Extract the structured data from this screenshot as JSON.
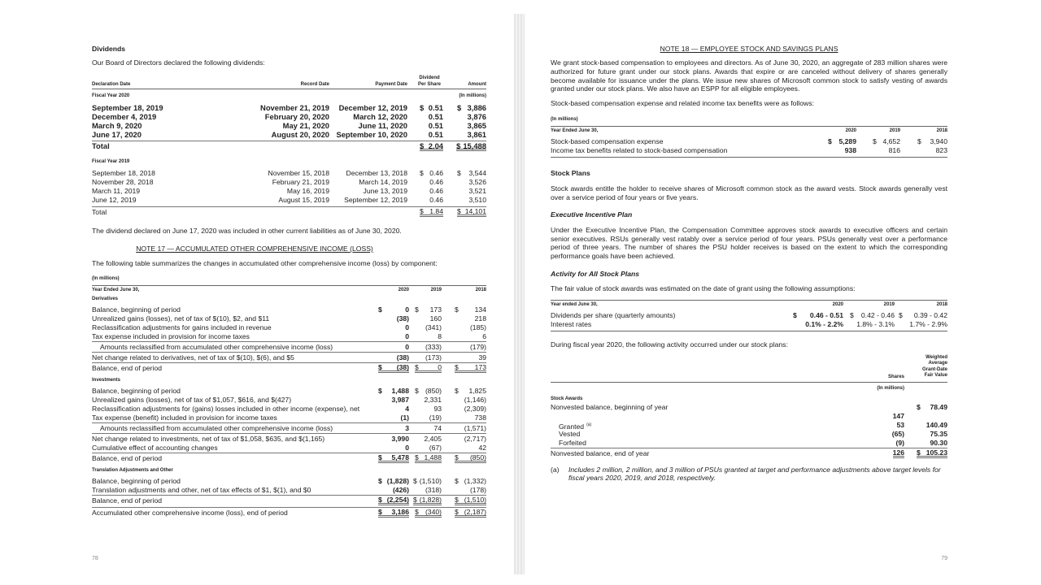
{
  "left_page": {
    "page_number": "78",
    "dividends": {
      "title": "Dividends",
      "intro": "Our Board of Directors declared the following dividends:",
      "headers": {
        "declaration_date": "Declaration Date",
        "record_date": "Record Date",
        "payment_date": "Payment Date",
        "dividend_per_share": "Dividend Per Share",
        "amount": "Amount"
      },
      "groups": [
        {
          "label": "Fiscal Year 2020",
          "unit": "(In millions)",
          "rows": [
            [
              "September 18, 2019",
              "November 21, 2019",
              "December 12, 2019",
              "$ 0.51",
              "$ 3,886"
            ],
            [
              "December 4, 2019",
              "February 20, 2020",
              "March 12, 2020",
              "0.51",
              "3,876"
            ],
            [
              "March 9, 2020",
              "May 21, 2020",
              "June 11, 2020",
              "0.51",
              "3,865"
            ],
            [
              "June 17, 2020",
              "August 20, 2020",
              "September 10, 2020",
              "0.51",
              "3,861"
            ]
          ],
          "total": [
            "Total",
            "",
            "",
            "$ 2.04",
            "$ 15,488"
          ]
        },
        {
          "label": "Fiscal Year 2019",
          "unit": "",
          "rows": [
            [
              "September 18, 2018",
              "November 15, 2018",
              "December 13, 2018",
              "$ 0.46",
              "$ 3,544"
            ],
            [
              "November 28, 2018",
              "February 21, 2019",
              "March 14, 2019",
              "0.46",
              "3,526"
            ],
            [
              "March 11, 2019",
              "May 16, 2019",
              "June 13, 2019",
              "0.46",
              "3,521"
            ],
            [
              "June 12, 2019",
              "August 15, 2019",
              "September 12, 2019",
              "0.46",
              "3,510"
            ]
          ],
          "total": [
            "Total",
            "",
            "",
            "$ 1.84",
            "$ 14,101"
          ]
        }
      ],
      "note_text": "The dividend declared on June 17, 2020 was included in other current liabilities as of June 30, 2020."
    },
    "aoci": {
      "title": "NOTE 17 — ACCUMULATED OTHER COMPREHENSIVE INCOME (LOSS)",
      "intro": "The following table summarizes the changes in accumulated other comprehensive income (loss) by component:",
      "unit": "(In millions)",
      "year_label": "Year Ended June 30,",
      "years": [
        "2020",
        "2019",
        "2018"
      ],
      "sections": [
        {
          "label": "Derivatives",
          "rows": [
            {
              "label": "Balance, beginning of period",
              "v": [
                "$ 0",
                "$ 173",
                "$ 134"
              ]
            },
            {
              "label": "Unrealized gains (losses), net of tax of $(10), $2, and $11",
              "v": [
                "(38)",
                "160",
                "218"
              ]
            },
            {
              "label": "Reclassification adjustments for gains included in revenue",
              "v": [
                "0",
                "(341)",
                "(185)"
              ]
            },
            {
              "label": "Tax expense included in provision for income taxes",
              "v": [
                "0",
                "8",
                "6"
              ]
            },
            {
              "label": "Amounts reclassified from accumulated other comprehensive income (loss)",
              "v": [
                "0",
                "(333)",
                "(179)"
              ]
            },
            {
              "label": "Net change related to derivatives, net of tax of $(10), $(6), and $5",
              "v": [
                "(38)",
                "(173)",
                "39"
              ]
            },
            {
              "label": "Balance, end of period",
              "v": [
                "$ (38)",
                "$ 0",
                "$ 173"
              ]
            }
          ]
        },
        {
          "label": "Investments",
          "rows": [
            {
              "label": "Balance, beginning of period",
              "v": [
                "$ 1,488",
                "$ (850)",
                "$ 1,825"
              ]
            },
            {
              "label": "Unrealized gains (losses), net of tax of $1,057, $616, and $(427)",
              "v": [
                "3,987",
                "2,331",
                "(1,146)"
              ]
            },
            {
              "label": "Reclassification adjustments for (gains) losses included in other income (expense), net",
              "v": [
                "4",
                "93",
                "(2,309)"
              ]
            },
            {
              "label": "Tax expense (benefit) included in provision for income taxes",
              "v": [
                "(1)",
                "(19)",
                "738"
              ]
            },
            {
              "label": "Amounts reclassified from accumulated other comprehensive income (loss)",
              "v": [
                "3",
                "74",
                "(1,571)"
              ]
            },
            {
              "label": "Net change related to investments, net of tax of $1,058, $635, and $(1,165)",
              "v": [
                "3,990",
                "2,405",
                "(2,717)"
              ]
            },
            {
              "label": "Cumulative effect of accounting changes",
              "v": [
                "0",
                "(67)",
                "42"
              ]
            },
            {
              "label": "Balance, end of period",
              "v": [
                "$ 5,478",
                "$ 1,488",
                "$ (850)"
              ]
            }
          ]
        },
        {
          "label": "Translation Adjustments and Other",
          "rows": [
            {
              "label": "Balance, beginning of period",
              "v": [
                "$ (1,828)",
                "$ (1,510)",
                "$ (1,332)"
              ]
            },
            {
              "label": "Translation adjustments and other, net of tax effects of $1, $(1), and $0",
              "v": [
                "(426)",
                "(318)",
                "(178)"
              ]
            },
            {
              "label": "Balance, end of period",
              "v": [
                "$ (2,254)",
                "$ (1,828)",
                "$ (1,510)"
              ]
            }
          ]
        }
      ],
      "final": {
        "label": "Accumulated other comprehensive income (loss), end of period",
        "v": [
          "$ 3,186",
          "$ (340)",
          "$ (2,187)"
        ]
      }
    }
  },
  "right_page": {
    "page_number": "79",
    "note_title": "NOTE 18 — EMPLOYEE STOCK AND SAVINGS PLANS",
    "intro": "We grant stock-based compensation to employees and directors. As of June 30, 2020, an aggregate of 283 million shares were authorized for future grant under our stock plans. Awards that expire or are canceled without delivery of shares generally become available for issuance under the plans. We issue new shares of Microsoft common stock to satisfy vesting of awards granted under our stock plans. We also have an ESPP for all eligible employees.",
    "sbc": {
      "intro": "Stock-based compensation expense and related income tax benefits were as follows:",
      "unit": "(In millions)",
      "year_label": "Year Ended June 30,",
      "years": [
        "2020",
        "2019",
        "2018"
      ],
      "rows": [
        {
          "label": "Stock-based compensation expense",
          "v": [
            "$ 5,289",
            "$ 4,652",
            "$ 3,940"
          ]
        },
        {
          "label": "Income tax benefits related to stock-based compensation",
          "v": [
            "938",
            "816",
            "823"
          ]
        }
      ]
    },
    "stock_plans": {
      "title": "Stock Plans",
      "text": "Stock awards entitle the holder to receive shares of Microsoft common stock as the award vests. Stock awards generally vest over a service period of four years or five years."
    },
    "executive_plan": {
      "title": "Executive Incentive Plan",
      "text": "Under the Executive Incentive Plan, the Compensation Committee approves stock awards to executive officers and certain senior executives. RSUs generally vest ratably over a service period of four years. PSUs generally vest over a performance period of three years. The number of shares the PSU holder receives is based on the extent to which the corresponding performance goals have been achieved."
    },
    "activity": {
      "title": "Activity for All Stock Plans",
      "intro": "The fair value of stock awards was estimated on the date of grant using the following assumptions:",
      "year_label": "Year ended June 30,",
      "years": [
        "2020",
        "2019",
        "2018"
      ],
      "rows": [
        {
          "label": "Dividends per share (quarterly amounts)",
          "v": [
            "$ 0.46 - 0.51",
            "$ 0.42 - 0.46",
            "$ 0.39 - 0.42"
          ]
        },
        {
          "label": "Interest rates",
          "v": [
            "0.1% - 2.2%",
            "1.8% - 3.1%",
            "1.7% - 2.9%"
          ]
        }
      ],
      "during_text": "During fiscal year 2020, the following activity occurred under our stock plans:",
      "headers": {
        "shares": "Shares",
        "fair_value": "Weighted Average Grant-Date Fair Value",
        "unit": "(In millions)"
      },
      "section_label": "Stock Awards",
      "awards": [
        {
          "label": "Nonvested balance, beginning of year",
          "shares": "147",
          "value": "$ 78.49"
        },
        {
          "label": "Granted",
          "footnote_ref": "(a)",
          "shares": "53",
          "value": "140.49"
        },
        {
          "label": "Vested",
          "shares": "(65)",
          "value": "75.35"
        },
        {
          "label": "Forfeited",
          "shares": "(9)",
          "value": "90.30"
        },
        {
          "label": "Nonvested balance, end of year",
          "shares": "126",
          "value": "$ 105.23"
        }
      ],
      "footnote": {
        "marker": "(a)",
        "text": "Includes 2 million, 2 million, and 3 million of PSUs granted at target and performance adjustments above target levels for fiscal years 2020, 2019, and 2018, respectively."
      }
    }
  }
}
